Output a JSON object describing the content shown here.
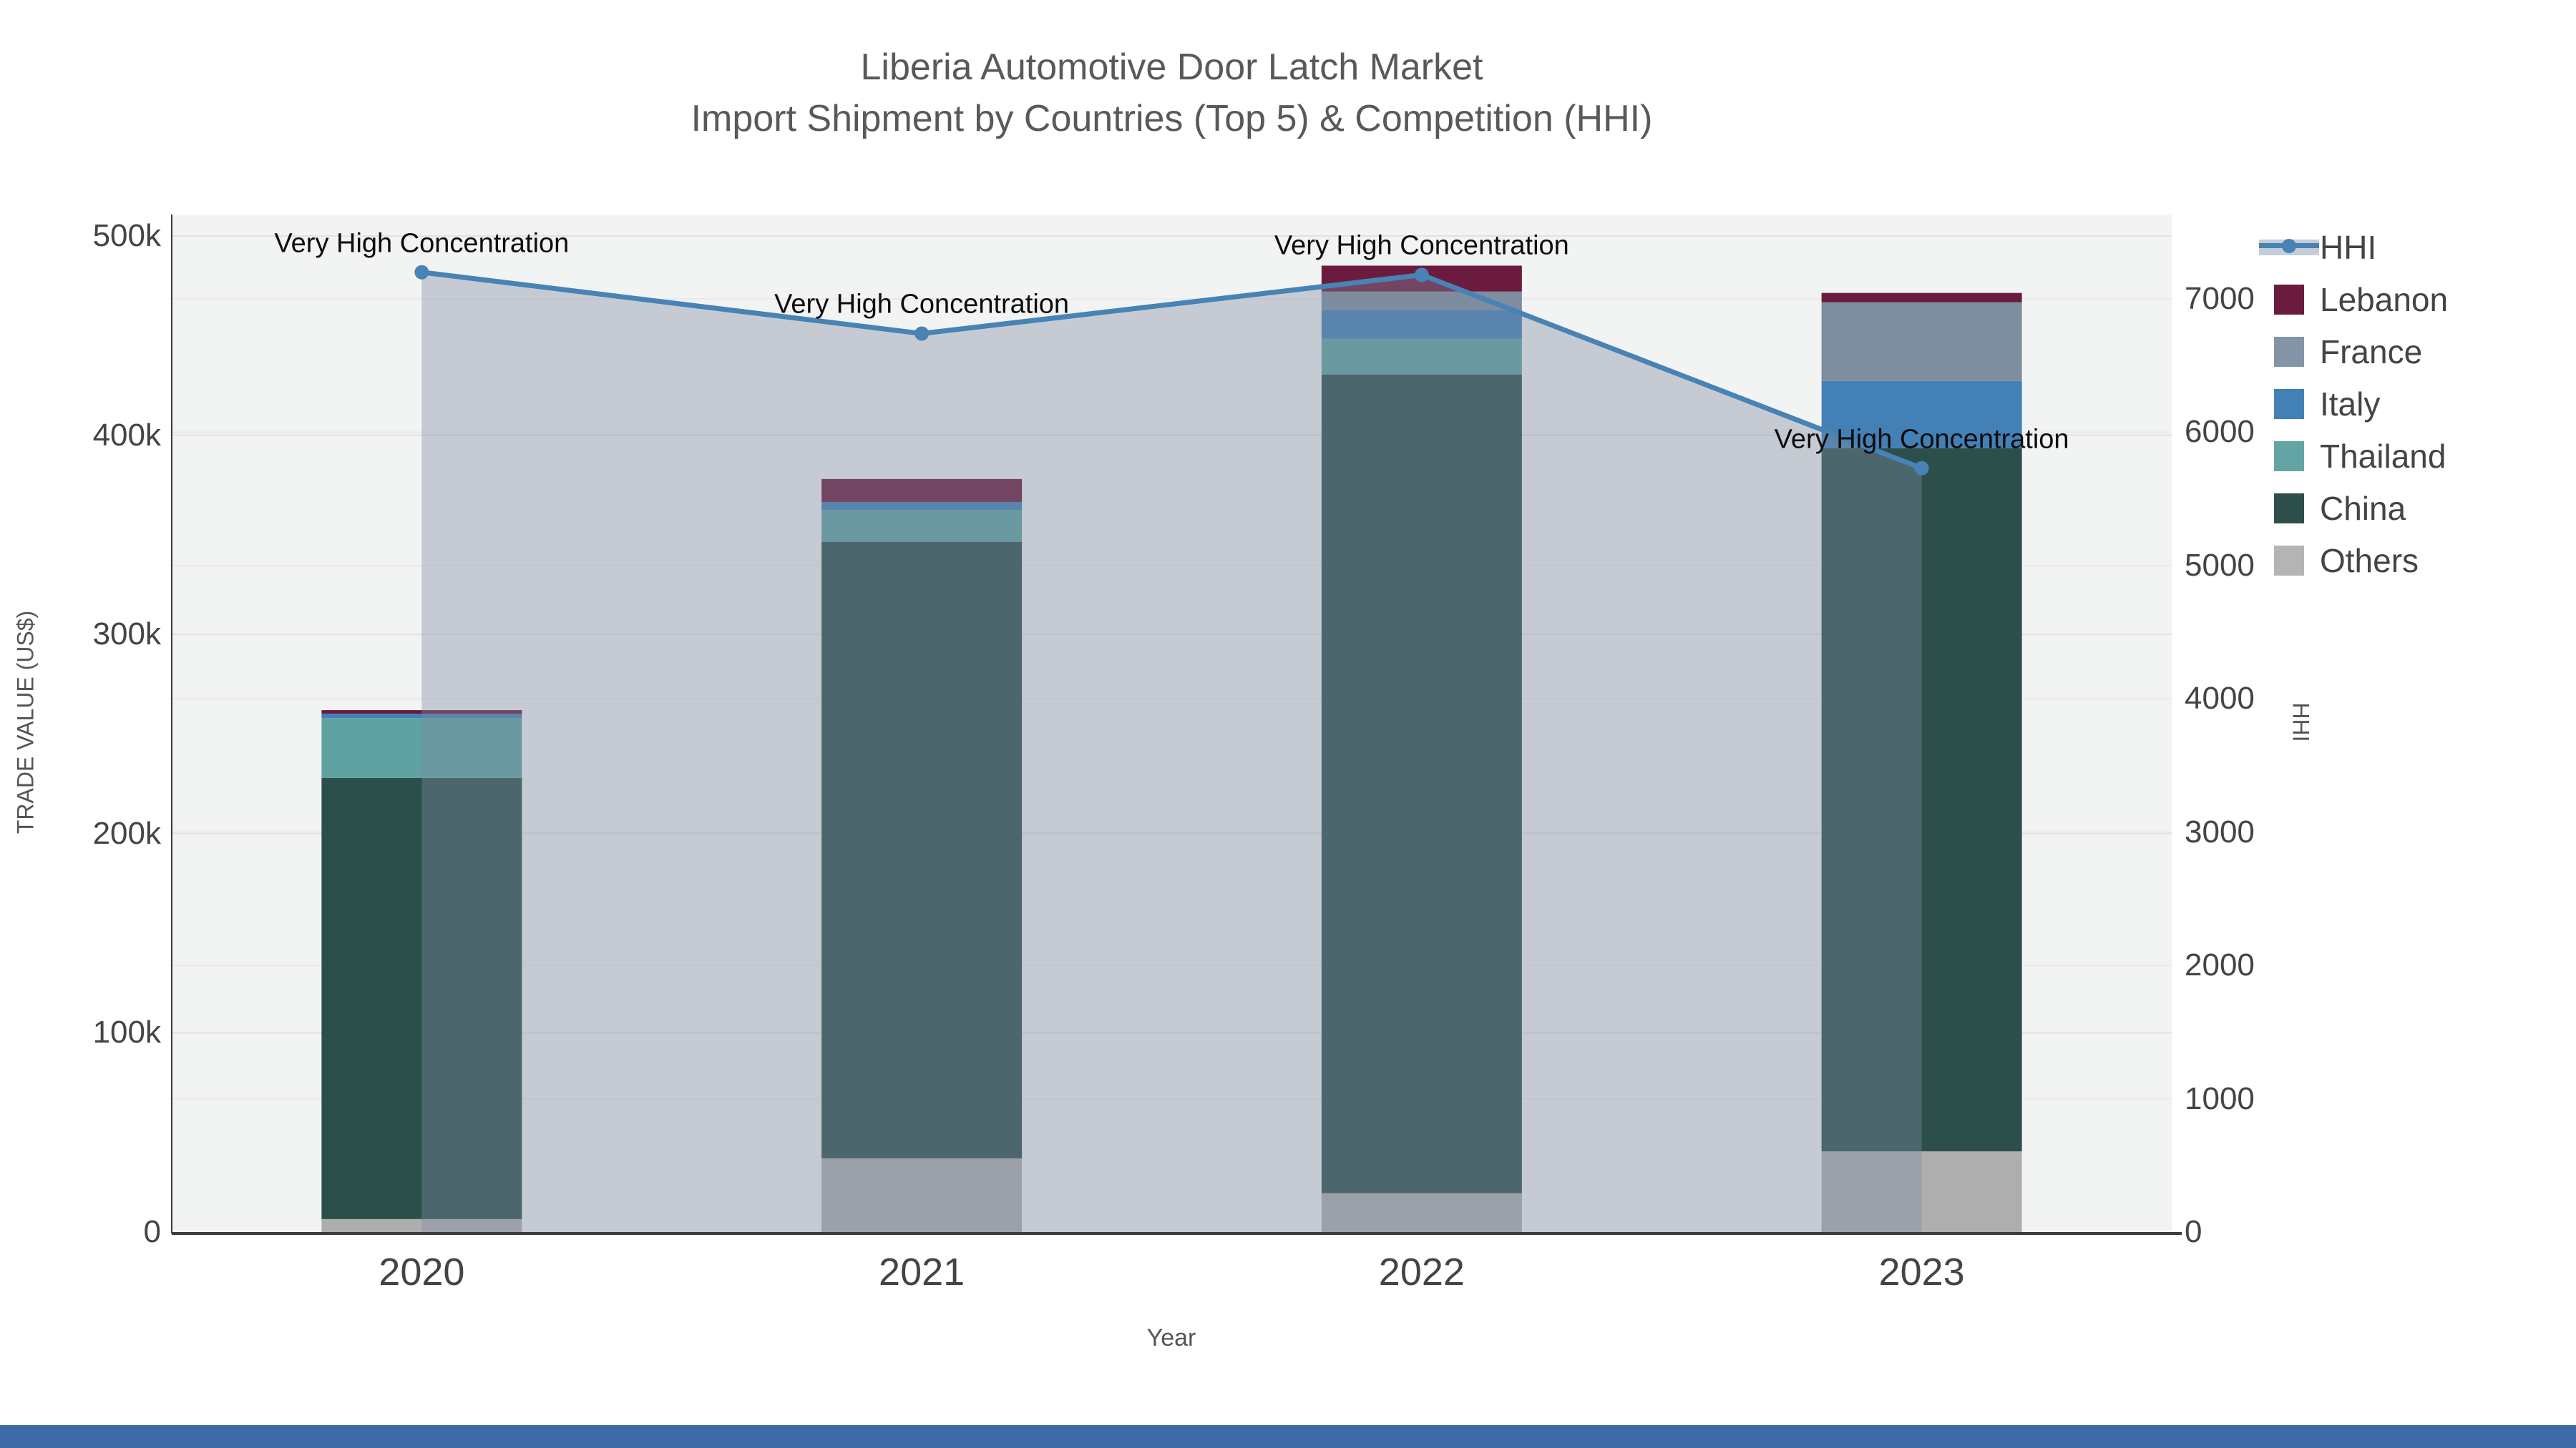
{
  "title": {
    "line1": "Liberia Automotive Door Latch Market",
    "line2": "Import Shipment by Countries (Top 5) & Competition (HHI)"
  },
  "chart_data": {
    "type": "bar+line",
    "categories": [
      "2020",
      "2021",
      "2022",
      "2023"
    ],
    "bar_series": [
      {
        "name": "Others",
        "color": "#aeaeae",
        "values": [
          6500,
          37000,
          19500,
          40500
        ]
      },
      {
        "name": "China",
        "color": "#2d4f4c",
        "values": [
          221500,
          309500,
          411000,
          353000
        ]
      },
      {
        "name": "Thailand",
        "color": "#5fa2a2",
        "values": [
          30000,
          16000,
          18000,
          0
        ]
      },
      {
        "name": "Italy",
        "color": "#4380b5",
        "values": [
          2200,
          4000,
          14300,
          33700
        ]
      },
      {
        "name": "France",
        "color": "#7e8da0",
        "values": [
          0,
          0,
          9300,
          39500
        ]
      },
      {
        "name": "Lebanon",
        "color": "#6b1c3e",
        "values": [
          1800,
          11500,
          13000,
          4700
        ]
      }
    ],
    "line_series": {
      "name": "HHI",
      "color": "#4783b4",
      "fill_color": "rgba(125,140,160,0.38)",
      "values": [
        7200,
        6740,
        7180,
        5730
      ]
    },
    "annotations": [
      {
        "text": "Very High Concentration",
        "category_index": 0
      },
      {
        "text": "Very High Concentration",
        "category_index": 1
      },
      {
        "text": "Very High Concentration",
        "category_index": 2
      },
      {
        "text": "Very High Concentration",
        "category_index": 3
      }
    ],
    "axes": {
      "left": {
        "title": "TRADE VALUE (US$)",
        "tick_labels": [
          "0",
          "100k",
          "200k",
          "300k",
          "400k",
          "500k"
        ],
        "tick_values": [
          0,
          100000,
          200000,
          300000,
          400000,
          500000
        ],
        "max": 500000
      },
      "right": {
        "title": "HHI",
        "tick_labels": [
          "0",
          "1000",
          "2000",
          "3000",
          "4000",
          "5000",
          "6000",
          "7000"
        ],
        "tick_values": [
          0,
          1000,
          2000,
          3000,
          4000,
          5000,
          6000,
          7000
        ],
        "max": 7000
      },
      "x": {
        "title": "Year"
      }
    },
    "grid": true,
    "legend_position": "right"
  },
  "legend": {
    "items": [
      {
        "label": "HHI",
        "type": "line",
        "color": "#4783b4",
        "band_color": "#c5cdd9"
      },
      {
        "label": "Lebanon",
        "type": "square",
        "color": "#6b1c3e"
      },
      {
        "label": "France",
        "type": "square",
        "color": "#8494a7"
      },
      {
        "label": "Italy",
        "type": "square",
        "color": "#4380b5"
      },
      {
        "label": "Thailand",
        "type": "square",
        "color": "#63a4a4"
      },
      {
        "label": "China",
        "type": "square",
        "color": "#2d4f4c"
      },
      {
        "label": "Others",
        "type": "square",
        "color": "#b4b4b4"
      }
    ]
  },
  "colors": {
    "plot_background": "#f2f3f3",
    "grid_major": "#e2e2e2",
    "grid_minor": "#eaeaea",
    "axis_line": "#3c3c3c",
    "tick_text": "#444444",
    "title_text": "#595959",
    "annotation_text": "#0d0d0d",
    "footer_bar": "#3b6aa6"
  }
}
